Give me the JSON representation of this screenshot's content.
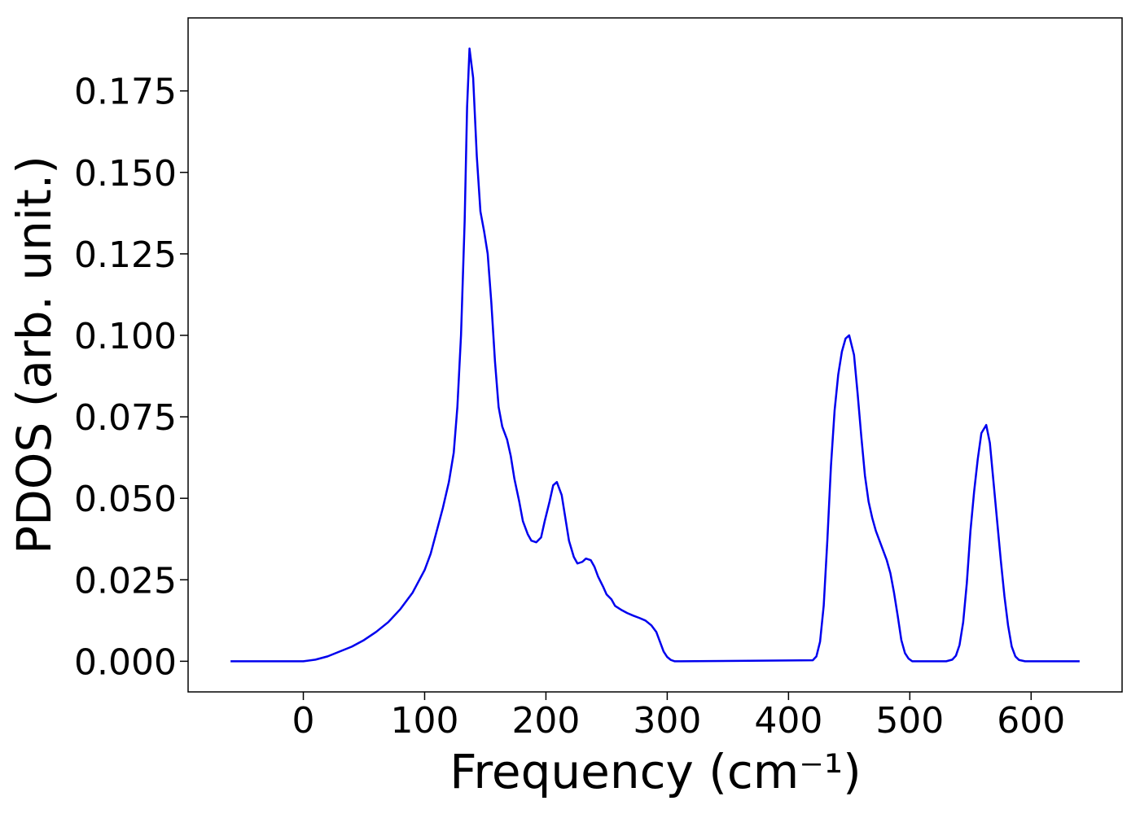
{
  "chart_data": {
    "type": "line",
    "xlabel": "Frequency (cm⁻¹)",
    "ylabel": "PDOS (arb. unit.)",
    "color": "#0000ee",
    "xlim": [
      -95,
      675
    ],
    "ylim": [
      -0.0094,
      0.1974
    ],
    "xticks": [
      0,
      100,
      200,
      300,
      400,
      500,
      600
    ],
    "yticks": [
      {
        "value": 0,
        "label": "0.000"
      },
      {
        "value": 0.025,
        "label": "0.025"
      },
      {
        "value": 0.05,
        "label": "0.050"
      },
      {
        "value": 0.075,
        "label": "0.075"
      },
      {
        "value": 0.1,
        "label": "0.100"
      },
      {
        "value": 0.125,
        "label": "0.125"
      },
      {
        "value": 0.15,
        "label": "0.150"
      },
      {
        "value": 0.175,
        "label": "0.175"
      }
    ],
    "x": [
      -60,
      -30,
      0,
      10,
      20,
      30,
      40,
      50,
      60,
      70,
      80,
      90,
      100,
      105,
      110,
      115,
      120,
      124,
      127,
      130,
      133,
      135,
      137,
      140,
      143,
      146,
      149,
      152,
      155,
      158,
      161,
      164,
      168,
      171,
      174,
      178,
      181,
      185,
      188,
      192,
      196,
      199,
      203,
      206,
      209,
      213,
      216,
      219,
      223,
      226,
      230,
      233,
      237,
      240,
      243,
      247,
      250,
      254,
      257,
      262,
      267,
      272,
      277,
      282,
      287,
      291,
      294,
      297,
      300,
      303,
      306,
      311,
      420,
      423,
      426,
      429,
      432,
      435,
      438,
      441,
      444,
      447,
      450,
      454,
      457,
      460,
      463,
      466,
      469,
      472,
      475,
      478,
      481,
      484,
      487,
      490,
      493,
      496,
      499,
      502,
      507,
      530,
      535,
      538,
      541,
      544,
      547,
      550,
      553,
      556,
      559,
      563,
      566,
      569,
      572,
      575,
      578,
      581,
      584,
      587,
      590,
      595,
      640
    ],
    "values": [
      0,
      0,
      0,
      0.0005,
      0.0015,
      0.003,
      0.0045,
      0.0065,
      0.009,
      0.012,
      0.016,
      0.021,
      0.028,
      0.033,
      0.04,
      0.047,
      0.055,
      0.064,
      0.078,
      0.1,
      0.135,
      0.17,
      0.188,
      0.179,
      0.155,
      0.138,
      0.132,
      0.125,
      0.11,
      0.092,
      0.078,
      0.072,
      0.068,
      0.063,
      0.056,
      0.049,
      0.043,
      0.039,
      0.037,
      0.0365,
      0.038,
      0.043,
      0.049,
      0.054,
      0.055,
      0.051,
      0.044,
      0.037,
      0.032,
      0.03,
      0.0305,
      0.0315,
      0.031,
      0.029,
      0.026,
      0.023,
      0.0205,
      0.019,
      0.017,
      0.0158,
      0.0148,
      0.014,
      0.0133,
      0.0125,
      0.011,
      0.009,
      0.006,
      0.003,
      0.0013,
      0.0004,
      0,
      0,
      0.0003,
      0.0015,
      0.006,
      0.017,
      0.037,
      0.06,
      0.077,
      0.088,
      0.095,
      0.099,
      0.1,
      0.094,
      0.082,
      0.069,
      0.057,
      0.049,
      0.044,
      0.04,
      0.037,
      0.034,
      0.031,
      0.027,
      0.021,
      0.014,
      0.0065,
      0.0025,
      0.0008,
      0,
      0,
      0,
      0.0005,
      0.0017,
      0.005,
      0.012,
      0.024,
      0.04,
      0.052,
      0.062,
      0.07,
      0.0725,
      0.067,
      0.055,
      0.043,
      0.031,
      0.02,
      0.011,
      0.0045,
      0.0015,
      0.0004,
      0,
      0
    ]
  }
}
